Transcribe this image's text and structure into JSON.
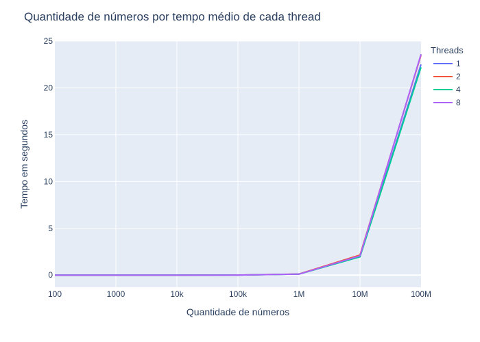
{
  "chart_data": {
    "type": "line",
    "title": "Quantidade de números por tempo médio de cada thread",
    "xlabel": "Quantidade de números",
    "ylabel": "Tempo em segundos",
    "x_scale": "log",
    "x": [
      100,
      1000,
      10000,
      100000,
      1000000,
      10000000,
      100000000
    ],
    "x_tick_labels": [
      "100",
      "1000",
      "10k",
      "100k",
      "1M",
      "10M",
      "100M"
    ],
    "y_ticks": [
      0,
      5,
      10,
      15,
      20,
      25
    ],
    "ylim": [
      -1.3,
      25
    ],
    "grid": true,
    "legend": {
      "title": "Threads",
      "placement": "right"
    },
    "series": [
      {
        "name": "1",
        "color": "#636efa",
        "values": [
          0.0,
          0.0,
          0.0,
          0.01,
          0.1,
          2.0,
          22.5
        ]
      },
      {
        "name": "2",
        "color": "#EF553B",
        "values": [
          0.0,
          0.0,
          0.0,
          0.01,
          0.12,
          2.15,
          23.5
        ]
      },
      {
        "name": "4",
        "color": "#00cc96",
        "values": [
          0.0,
          0.0,
          0.0,
          0.01,
          0.1,
          1.95,
          22.2
        ]
      },
      {
        "name": "8",
        "color": "#ab63fa",
        "values": [
          0.0,
          0.0,
          0.0,
          0.01,
          0.1,
          2.05,
          23.6
        ]
      }
    ]
  }
}
